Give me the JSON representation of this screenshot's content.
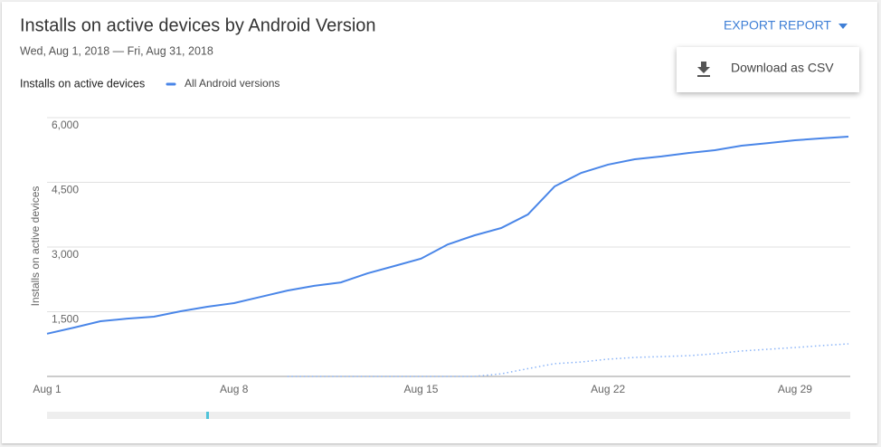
{
  "header": {
    "title": "Installs on active devices by Android Version",
    "date_range": "Wed, Aug 1, 2018 — Fri, Aug 31, 2018",
    "export": "EXPORT REPORT",
    "menu": [
      "Download as CSV"
    ]
  },
  "chart_data": {
    "type": "line",
    "legend_title": "Installs on active devices",
    "y_label": "Installs on active devices",
    "categories": [
      "Aug 1",
      null,
      null,
      null,
      null,
      null,
      null,
      "Aug 8",
      null,
      null,
      null,
      null,
      null,
      null,
      "Aug 15",
      null,
      null,
      null,
      null,
      null,
      null,
      "Aug 22",
      null,
      null,
      null,
      null,
      null,
      null,
      "Aug 29",
      null,
      null
    ],
    "series": [
      {
        "name": "All Android versions",
        "color": "#4a86e8",
        "dash": false,
        "values": [
          990,
          1130,
          1280,
          1340,
          1385,
          1510,
          1615,
          1700,
          1845,
          1990,
          2100,
          2180,
          2390,
          2560,
          2730,
          3060,
          3270,
          3440,
          3755,
          4405,
          4720,
          4910,
          5035,
          5100,
          5180,
          5245,
          5350,
          5410,
          5475,
          5520,
          5560
        ]
      },
      {
        "color": "#8ab4f8",
        "dash": true,
        "values": [
          null,
          null,
          null,
          null,
          null,
          null,
          null,
          null,
          null,
          0,
          0,
          0,
          0,
          0,
          0,
          0,
          0,
          60,
          180,
          295,
          335,
          400,
          440,
          460,
          480,
          525,
          590,
          630,
          670,
          715,
          755
        ]
      }
    ],
    "ylim": [
      0,
      6000
    ],
    "yticks": [
      {
        "value": 1500,
        "label": "1,500"
      },
      {
        "value": 3000,
        "label": "3,000"
      },
      {
        "value": 4500,
        "label": "4,500"
      },
      {
        "value": 6000,
        "label": "6,000"
      }
    ],
    "grid": true
  }
}
